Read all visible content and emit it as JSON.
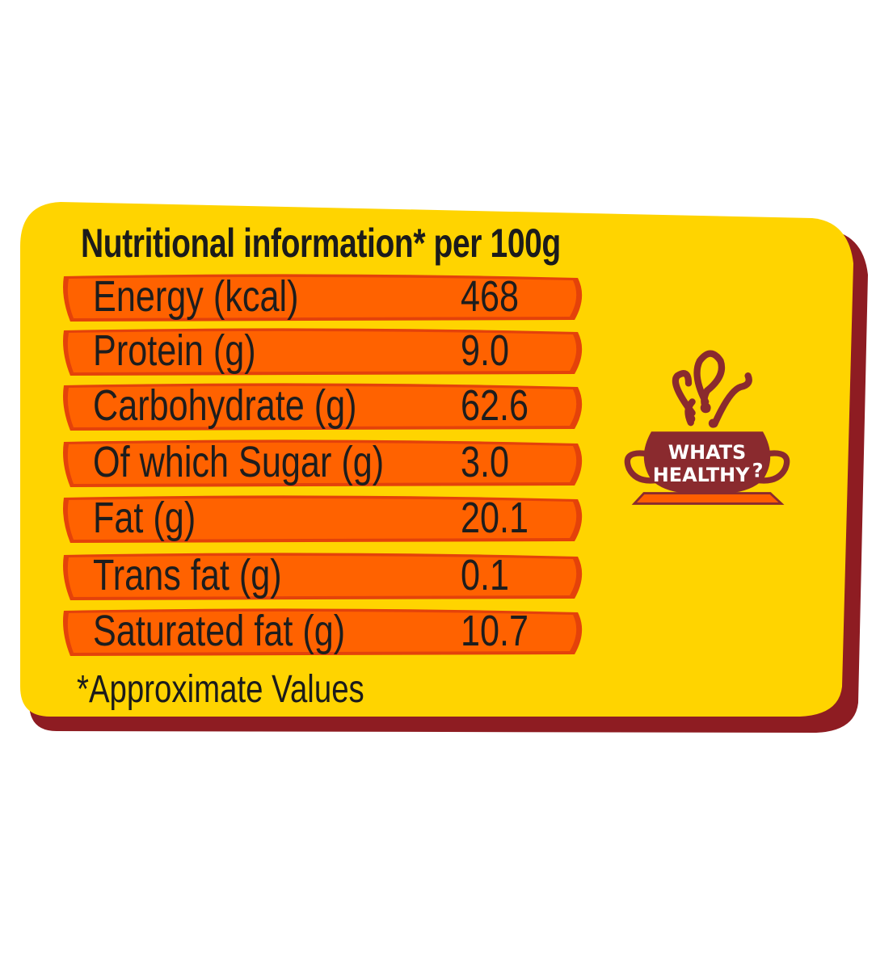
{
  "title": "Nutritional information* per 100g",
  "rows": [
    {
      "label": "Energy (kcal)",
      "value": "468"
    },
    {
      "label": "Protein (g)",
      "value": "9.0"
    },
    {
      "label": "Carbohydrate (g)",
      "value": "62.6"
    },
    {
      "label": "Of which Sugar (g)",
      "value": "3.0"
    },
    {
      "label": "Fat (g)",
      "value": "20.1"
    },
    {
      "label": "Trans fat (g)",
      "value": "0.1"
    },
    {
      "label": "Saturated fat (g)",
      "value": "10.7"
    }
  ],
  "footnote": "*Approximate Values",
  "logo": {
    "line1": "WHATS",
    "line2": "HEALTHY",
    "mark": "?"
  },
  "colors": {
    "card": "#FFD400",
    "shadow": "#8E1C22",
    "band": "#FF6200",
    "band_edge": "#E4420A",
    "logo": "#8A2A2E"
  }
}
